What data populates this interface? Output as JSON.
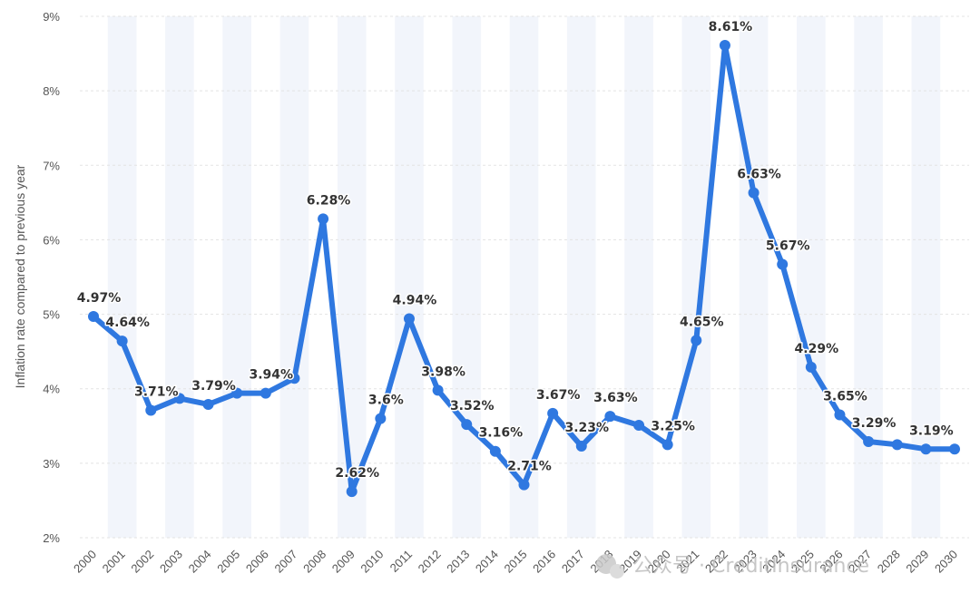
{
  "chart_data": {
    "type": "line",
    "ylabel": "Inflation rate compared to previous year",
    "xlabel": "",
    "ylim": [
      2,
      9
    ],
    "yticks": [
      2,
      3,
      4,
      5,
      6,
      7,
      8,
      9
    ],
    "ytick_labels": [
      "2%",
      "3%",
      "4%",
      "5%",
      "6%",
      "7%",
      "8%",
      "9%"
    ],
    "grid": true,
    "line_color": "#2f78e0",
    "band_color": "#f2f5fb",
    "x": [
      "2000",
      "2001",
      "2002",
      "2003",
      "2004",
      "2005",
      "2006",
      "2007",
      "2008",
      "2009",
      "2010",
      "2011",
      "2012",
      "2013",
      "2014",
      "2015",
      "2016",
      "2017",
      "2018",
      "2019",
      "2020",
      "2021",
      "2022",
      "2023",
      "2024",
      "2025",
      "2026",
      "2027",
      "2028",
      "2029",
      "2030"
    ],
    "values": [
      4.97,
      4.64,
      3.71,
      3.87,
      3.79,
      3.94,
      3.94,
      4.14,
      6.28,
      2.62,
      3.6,
      4.94,
      3.98,
      3.52,
      3.16,
      2.71,
      3.67,
      3.23,
      3.63,
      3.51,
      3.25,
      4.65,
      8.61,
      6.63,
      5.67,
      4.29,
      3.65,
      3.29,
      3.25,
      3.19,
      3.19
    ],
    "data_labels": [
      "4.97%",
      "4.64%",
      "3.71%",
      null,
      "3.79%",
      null,
      "3.94%",
      null,
      "6.28%",
      "2.62%",
      "3.6%",
      "4.94%",
      "3.98%",
      "3.52%",
      "3.16%",
      "2.71%",
      "3.67%",
      "3.23%",
      "3.63%",
      null,
      "3.25%",
      "4.65%",
      "8.61%",
      "6.63%",
      "5.67%",
      "4.29%",
      "3.65%",
      "3.29%",
      null,
      "3.19%",
      null
    ],
    "watermark": "公众号 · CreditInsurance"
  }
}
